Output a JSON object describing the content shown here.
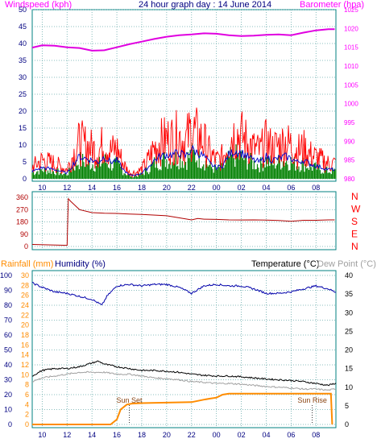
{
  "header": {
    "left": "Windspeed (kph)",
    "center": "24 hour graph day : 14 June 2014",
    "right": "Barometer (hpa)"
  },
  "bottom_header": {
    "rain": "Rainfall (mm)",
    "humidity": "Humidity (%)",
    "temperature": "Temperature (°C)",
    "dewpoint": "Dew Point (°C)"
  },
  "colors": {
    "windspeed": "#ff0000",
    "gust_bars": "#008000",
    "average": "#0000cc",
    "barometer": "#e000e0",
    "direction": "#b00000",
    "rain": "#ff8c00",
    "humidity": "#0000aa",
    "temperature": "#000000",
    "dewpoint": "#a0a0a0",
    "grid": "#66aaaa",
    "axis_text": "#000080"
  },
  "chart_data": [
    {
      "type": "line",
      "panel": "wind-barometer",
      "x_ticks": [
        "10",
        "12",
        "14",
        "16",
        "18",
        "20",
        "22",
        "00",
        "02",
        "04",
        "06",
        "08"
      ],
      "y_left": {
        "label": "Windspeed (kph)",
        "ylim": [
          0,
          50
        ],
        "ticks": [
          0,
          5,
          10,
          15,
          20,
          25,
          30,
          35,
          40,
          45,
          50
        ]
      },
      "y_right": {
        "label": "Barometer (hpa)",
        "ylim": [
          980,
          1025
        ],
        "ticks": [
          980,
          985,
          990,
          995,
          1000,
          1005,
          1010,
          1015,
          1020,
          1025
        ]
      },
      "grid": true,
      "series": [
        {
          "name": "Windspeed (kph)",
          "axis": "left",
          "x": [
            9.2,
            10,
            11,
            12,
            12.5,
            13,
            13.5,
            14,
            14.5,
            15,
            15.5,
            16,
            16.5,
            17,
            17.5,
            18,
            18.5,
            19,
            19.5,
            20,
            20.5,
            21,
            21.5,
            22,
            22.5,
            23,
            23.5,
            24,
            24.5,
            25,
            25.5,
            26,
            26.5,
            27,
            27.5,
            28,
            28.5,
            29,
            29.5,
            30,
            30.5,
            31,
            31.5,
            32,
            32.5,
            33,
            33.5
          ],
          "values": [
            4,
            6,
            5,
            3,
            8,
            12,
            11,
            10,
            9,
            12,
            9,
            10,
            5,
            2,
            2,
            3,
            6,
            10,
            12,
            13,
            13,
            14,
            12,
            16,
            14,
            12,
            8,
            6,
            7,
            13,
            15,
            14,
            12,
            10,
            9,
            12,
            10,
            11,
            12,
            11,
            9,
            10,
            8,
            7,
            6,
            5,
            5
          ]
        },
        {
          "name": "Barometer (hpa)",
          "axis": "right",
          "x": [
            9.2,
            10,
            11,
            12,
            13,
            14,
            15,
            16,
            17,
            18,
            19,
            20,
            21,
            22,
            23,
            24,
            25,
            26,
            27,
            28,
            29,
            30,
            31,
            32,
            33,
            33.5
          ],
          "values": [
            1014.9,
            1015.5,
            1015.4,
            1015,
            1014.8,
            1014.1,
            1014.2,
            1015,
            1015.8,
            1016.5,
            1017.2,
            1017.8,
            1018.2,
            1018.4,
            1018.7,
            1018.6,
            1018.2,
            1018,
            1018.1,
            1018.3,
            1018.4,
            1018.2,
            1018.9,
            1019.5,
            1019.8,
            1019.8
          ]
        }
      ]
    },
    {
      "type": "line",
      "panel": "wind-direction",
      "y_ticks": [
        "0",
        "90",
        "180",
        "270",
        "360"
      ],
      "y_right_labels": [
        "N",
        "W",
        "S",
        "E",
        "N"
      ],
      "ylim": [
        0,
        360
      ],
      "series": [
        {
          "name": "Wind direction",
          "x": [
            9.2,
            12,
            12.1,
            12.3,
            13,
            14,
            15,
            16,
            17,
            18,
            20,
            22,
            22.5,
            23,
            24,
            25,
            26,
            27,
            28,
            29,
            30,
            31,
            32,
            33,
            33.5
          ],
          "values": [
            15,
            8,
            350,
            330,
            270,
            248,
            244,
            242,
            238,
            235,
            225,
            195,
            205,
            200,
            198,
            195,
            194,
            195,
            193,
            190,
            185,
            192,
            192,
            195,
            195
          ]
        }
      ]
    },
    {
      "type": "line",
      "panel": "rain-humidity-temperature",
      "y_left_outer": {
        "label": "Humidity (%)",
        "ylim": [
          0,
          100
        ],
        "ticks": [
          0,
          10,
          20,
          30,
          40,
          50,
          60,
          70,
          80,
          90,
          100
        ]
      },
      "y_left_inner": {
        "label": "Rainfall (mm)",
        "ylim": [
          0,
          30
        ],
        "ticks": [
          0,
          2,
          4,
          6,
          8,
          10,
          12,
          14,
          16,
          18,
          20,
          22,
          24,
          26,
          28,
          30
        ]
      },
      "y_right": {
        "label": "Temperature (°C)",
        "ylim": [
          0,
          40
        ],
        "ticks": [
          0,
          5,
          10,
          15,
          20,
          25,
          30,
          35,
          40
        ]
      },
      "annotations": [
        "Sun Set",
        "Sun Rise"
      ],
      "series": [
        {
          "name": "Humidity (%)",
          "axis": "outer",
          "x": [
            9.2,
            10,
            11,
            12,
            13,
            14,
            14.8,
            15.2,
            16,
            17,
            18,
            19,
            20,
            21,
            22,
            23,
            24,
            25,
            26,
            27,
            28,
            29,
            30,
            31,
            32,
            33,
            33.5
          ],
          "values": [
            95,
            92,
            89,
            88,
            86,
            84,
            80,
            86,
            93,
            94,
            93,
            94,
            94,
            92,
            88,
            93,
            94,
            93,
            93,
            91,
            88,
            88,
            89,
            91,
            93,
            91,
            89
          ]
        },
        {
          "name": "Temperature (°C)",
          "axis": "right",
          "x": [
            9.2,
            10,
            11,
            12,
            13,
            14,
            14.5,
            15,
            16,
            17,
            18,
            19,
            20,
            21,
            22,
            23,
            24,
            25,
            26,
            27,
            28,
            29,
            30,
            31,
            32,
            33,
            33.5
          ],
          "values": [
            13,
            14.5,
            15,
            15,
            15.5,
            16.5,
            17,
            16.2,
            15.5,
            15,
            14.5,
            14.5,
            14.3,
            14,
            13.5,
            13.2,
            13,
            13,
            12.8,
            12.5,
            12.2,
            12,
            11.8,
            11.5,
            11,
            10.5,
            11
          ]
        },
        {
          "name": "Dew Point (°C)",
          "axis": "right",
          "x": [
            9.2,
            10,
            11,
            12,
            13,
            14,
            15,
            16,
            17,
            18,
            19,
            20,
            21,
            22,
            23,
            24,
            25,
            26,
            27,
            28,
            29,
            30,
            31,
            32,
            33,
            33.5
          ],
          "values": [
            11.5,
            12.5,
            13,
            13.5,
            14,
            14,
            14,
            13.5,
            13.5,
            13,
            12.5,
            12.3,
            12,
            11.5,
            11.3,
            11,
            11,
            10.8,
            10.5,
            10.2,
            10,
            9.8,
            9.5,
            9.5,
            9.2,
            9.5
          ]
        },
        {
          "name": "Rainfall (mm)",
          "axis": "inner",
          "x": [
            9.2,
            15.5,
            16,
            16.3,
            16.8,
            17.2,
            18,
            20,
            22,
            23,
            23.5,
            24,
            24.5,
            25,
            26,
            28,
            30,
            32,
            33,
            33.2,
            33.3
          ],
          "values": [
            0,
            0,
            1,
            3,
            4,
            4.2,
            4.3,
            4.4,
            4.5,
            5,
            5.2,
            5.4,
            6,
            6.2,
            6.2,
            6.2,
            6.2,
            6.2,
            6.2,
            6.2,
            0
          ]
        }
      ]
    }
  ]
}
